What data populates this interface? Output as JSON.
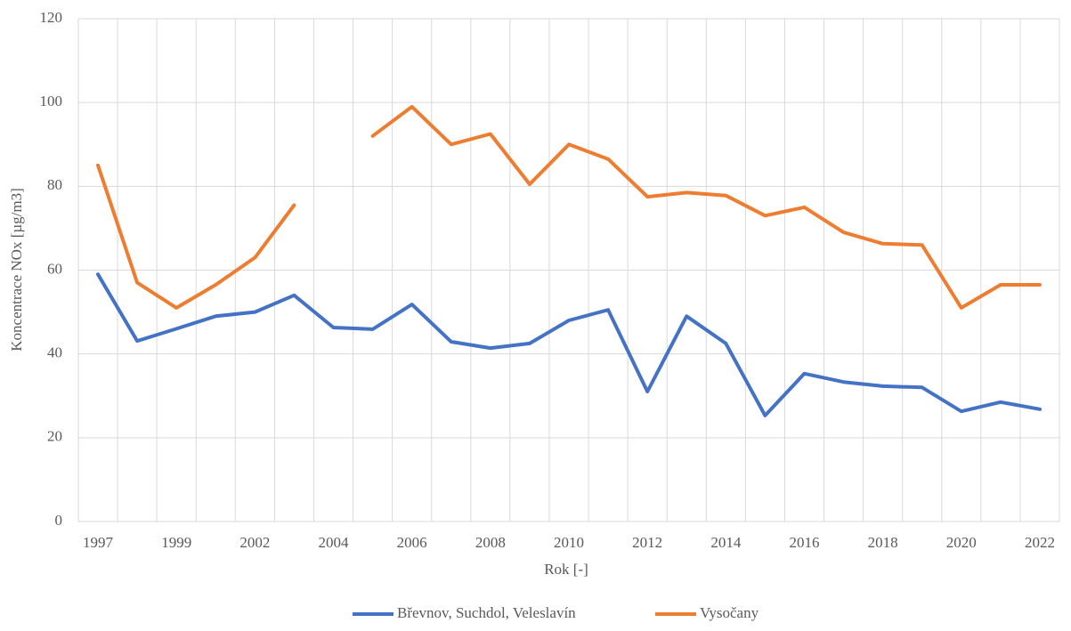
{
  "chart_data": {
    "type": "line",
    "x_label": "Rok [-]",
    "y_label": "Koncentrace NOx [µg/m3]",
    "categories": [
      "1997",
      null,
      "1999",
      null,
      "2002",
      null,
      "2004",
      null,
      "2006",
      null,
      "2008",
      null,
      "2010",
      null,
      "2012",
      null,
      "2014",
      null,
      "2016",
      null,
      "2018",
      null,
      "2020",
      null,
      "2022"
    ],
    "series": [
      {
        "name": "Břevnov, Suchdol, Veleslavín",
        "color": "#4472c4",
        "values": [
          59,
          43.1,
          46,
          49,
          50,
          54,
          46.3,
          45.9,
          51.8,
          42.9,
          41.4,
          42.5,
          48,
          50.5,
          31,
          49,
          42.5,
          25.3,
          35.3,
          33.3,
          32.3,
          32,
          26.3,
          28.5,
          26.8
        ]
      },
      {
        "name": "Vysočany",
        "color": "#ed7d31",
        "values": [
          85,
          57,
          51,
          56.5,
          63,
          75.5,
          null,
          92,
          99,
          90,
          92.5,
          80.5,
          90,
          86.5,
          77.5,
          78.5,
          77.8,
          73,
          75,
          69,
          66.3,
          66,
          51,
          56.5,
          56.5
        ]
      }
    ],
    "ylim": [
      0,
      120
    ],
    "yticks": [
      0,
      20,
      40,
      60,
      80,
      100,
      120
    ],
    "grid": true,
    "legend": "bottom"
  }
}
